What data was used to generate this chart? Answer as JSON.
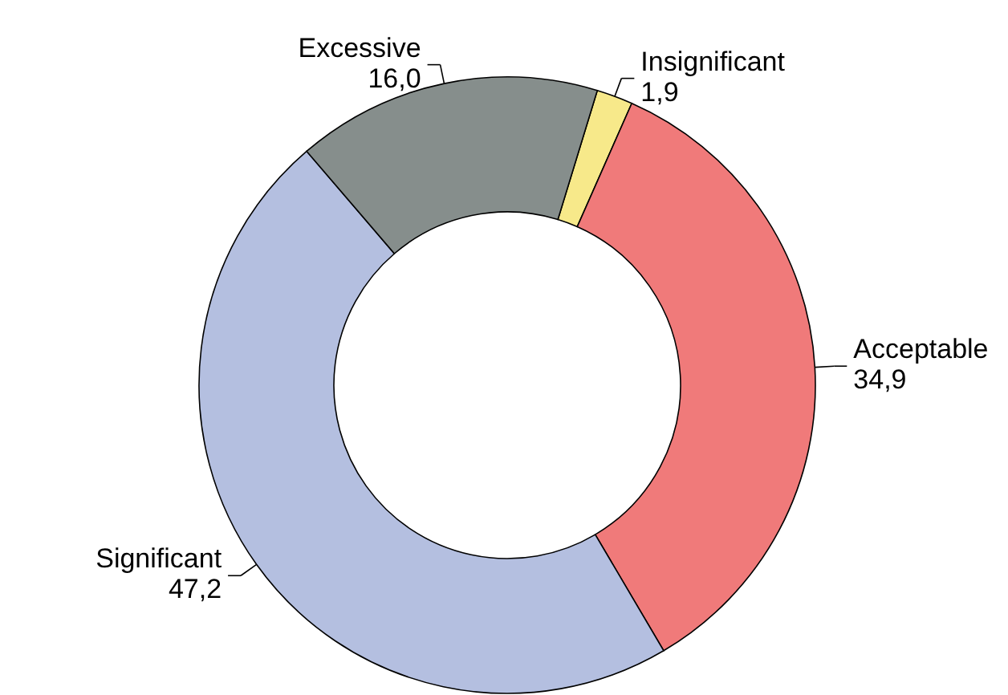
{
  "chart_data": {
    "type": "donut",
    "categories": [
      "Insignificant",
      "Acceptable",
      "Significant",
      "Excessive"
    ],
    "values": [
      1.9,
      34.9,
      47.2,
      16.0
    ],
    "value_labels": [
      "1,9",
      "34,9",
      "47,2",
      "16,0"
    ],
    "colors": [
      "#f7e98a",
      "#f07a7a",
      "#b4bfe0",
      "#868e8c"
    ]
  }
}
